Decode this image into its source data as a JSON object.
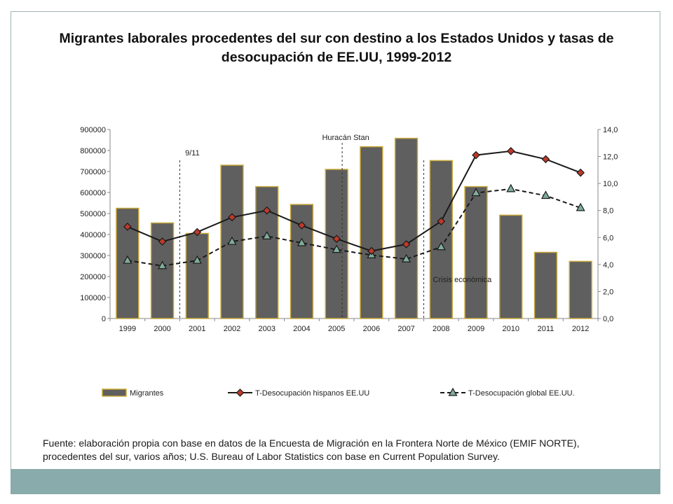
{
  "title": "Migrantes laborales procedentes del sur con destino a los Estados Unidos y tasas de desocupación de EE.UU, 1999-2012",
  "source": "Fuente: elaboración propia con base en datos de la Encuesta de Migración en la Frontera Norte de México (EMIF NORTE), procedentes del sur, varios años; U.S. Bureau of Labor Statistics con base en Current Population Survey.",
  "colors": {
    "bar_fill": "#5f5f5f",
    "bar_border": "#c8a83a",
    "line_hispanos": "#1a1a1a",
    "marker_hispanos": "#c0392b",
    "line_global": "#1a1a1a",
    "marker_global": "#7fae9a",
    "footer_band": "#8aabab"
  },
  "chart_data": {
    "type": "bar",
    "categories": [
      "1999",
      "2000",
      "2001",
      "2002",
      "2003",
      "2004",
      "2005",
      "2006",
      "2007",
      "2008",
      "2009",
      "2010",
      "2011",
      "2012"
    ],
    "series": [
      {
        "name": "Migrantes",
        "type": "bar",
        "axis": "left",
        "values": [
          525000,
          455000,
          405000,
          730000,
          628000,
          543000,
          710000,
          818000,
          858000,
          752000,
          628000,
          492000,
          315000,
          272000
        ]
      },
      {
        "name": "T-Desocupación hispanos EE.UU",
        "type": "line",
        "axis": "right",
        "values": [
          6.8,
          5.7,
          6.4,
          7.5,
          8.0,
          6.9,
          5.9,
          5.0,
          5.5,
          7.2,
          12.1,
          12.4,
          11.8,
          10.8
        ]
      },
      {
        "name": "T-Desocupación global EE.UU.",
        "type": "line",
        "style": "dashed",
        "axis": "right",
        "values": [
          4.3,
          3.9,
          4.3,
          5.7,
          6.1,
          5.6,
          5.1,
          4.7,
          4.4,
          5.3,
          9.3,
          9.6,
          9.1,
          8.2
        ]
      }
    ],
    "y_left": {
      "min": 0,
      "max": 900000,
      "ticks": [
        "0",
        "100000",
        "200000",
        "300000",
        "400000",
        "500000",
        "600000",
        "700000",
        "800000",
        "900000"
      ]
    },
    "y_right": {
      "min": 0,
      "max": 14,
      "ticks": [
        "0,0",
        "2,0",
        "4,0",
        "6,0",
        "8,0",
        "10,0",
        "12,0",
        "14,0"
      ]
    },
    "annotations": [
      {
        "text": "9/11",
        "year": "2001"
      },
      {
        "text": "Huracán Stan",
        "year": "2005"
      },
      {
        "text": "Crisis económica",
        "year": "2008"
      }
    ],
    "legend_position": "bottom",
    "grid": false
  }
}
